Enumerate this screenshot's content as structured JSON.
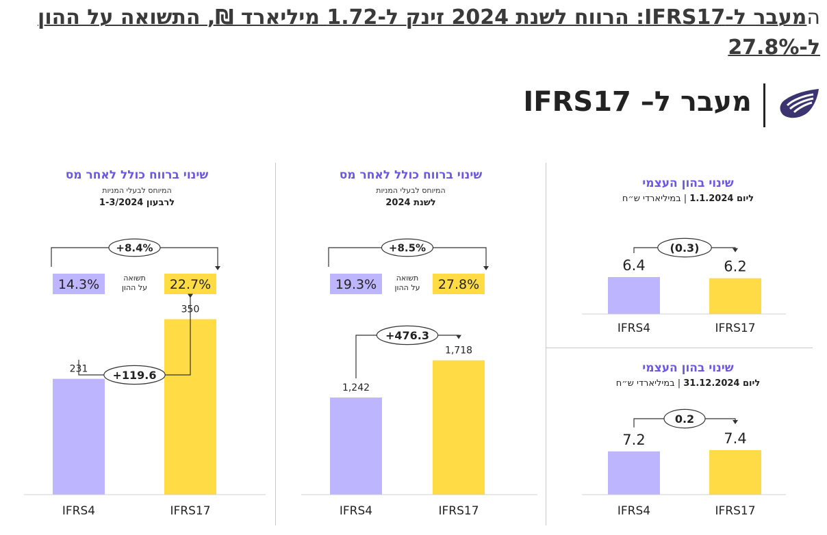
{
  "headline": {
    "first_letter": "ה",
    "rest": "מעבר ל-IFRS17: הרווח לשנת 2024 זינק ל-1.72 מיליארד ₪, התשואה על ההון ל-27.8%"
  },
  "brand": {
    "logo_icon": "company-logo-icon",
    "section_title": "מעבר ל– IFRS17"
  },
  "colors": {
    "ifrs4": "#bdb6ff",
    "ifrs17": "#ffdb45",
    "title": "#6b56e8"
  },
  "panels": {
    "quarter": {
      "title": "שינוי ברווח כולל לאחר  מס",
      "subtitle": "המיוחס לבעלי המניות",
      "period": "לרבעון 1-3/2024"
    },
    "year": {
      "title": "שינוי ברווח כולל לאחר מס",
      "subtitle": "המיוחס לבעלי המניות",
      "period": "לשנת 2024"
    },
    "equity_start": {
      "title": "שינוי בהון העצמי",
      "date_label": "ליום 1.1.2024",
      "unit_label": "במיליארדי ש״ח"
    },
    "equity_end": {
      "title": "שינוי בהון העצמי",
      "date_label": "ליום 31.12.2024",
      "unit_label": "במיליארדי ש״ח"
    }
  },
  "chart_data": [
    {
      "id": "quarter_roe",
      "type": "bar",
      "series_label": "תשואה\nעל ההון",
      "categories": [
        "IFRS4",
        "IFRS17"
      ],
      "value_labels": [
        "14.3%",
        "22.7%"
      ],
      "values": [
        14.3,
        22.7
      ],
      "change_label": "+8.4%"
    },
    {
      "id": "quarter_profit",
      "type": "bar",
      "categories": [
        "IFRS4",
        "IFRS17"
      ],
      "values": [
        231,
        350
      ],
      "value_labels": [
        "231",
        "350"
      ],
      "change_label": "+119.6",
      "ylim": [
        0,
        450
      ]
    },
    {
      "id": "year_roe",
      "type": "bar",
      "series_label": "תשואה\nעל ההון",
      "categories": [
        "IFRS4",
        "IFRS17"
      ],
      "value_labels": [
        "19.3%",
        "27.8%"
      ],
      "values": [
        19.3,
        27.8
      ],
      "change_label": "+8.5%"
    },
    {
      "id": "year_profit",
      "type": "bar",
      "categories": [
        "IFRS4",
        "IFRS17"
      ],
      "values": [
        1242,
        1718
      ],
      "value_labels": [
        "1,242",
        "1,718"
      ],
      "change_label": "+476.3",
      "ylim": [
        0,
        2100
      ]
    },
    {
      "id": "equity_start",
      "type": "bar",
      "categories": [
        "IFRS4",
        "IFRS17"
      ],
      "values": [
        6.4,
        6.2
      ],
      "value_labels": [
        "6.4",
        "6.2"
      ],
      "change_label": "(0.3)",
      "ylim": [
        0,
        6.4
      ]
    },
    {
      "id": "equity_end",
      "type": "bar",
      "categories": [
        "IFRS4",
        "IFRS17"
      ],
      "values": [
        7.2,
        7.4
      ],
      "value_labels": [
        "7.2",
        "7.4"
      ],
      "change_label": "0.2",
      "ylim": [
        0,
        7.4
      ]
    }
  ]
}
